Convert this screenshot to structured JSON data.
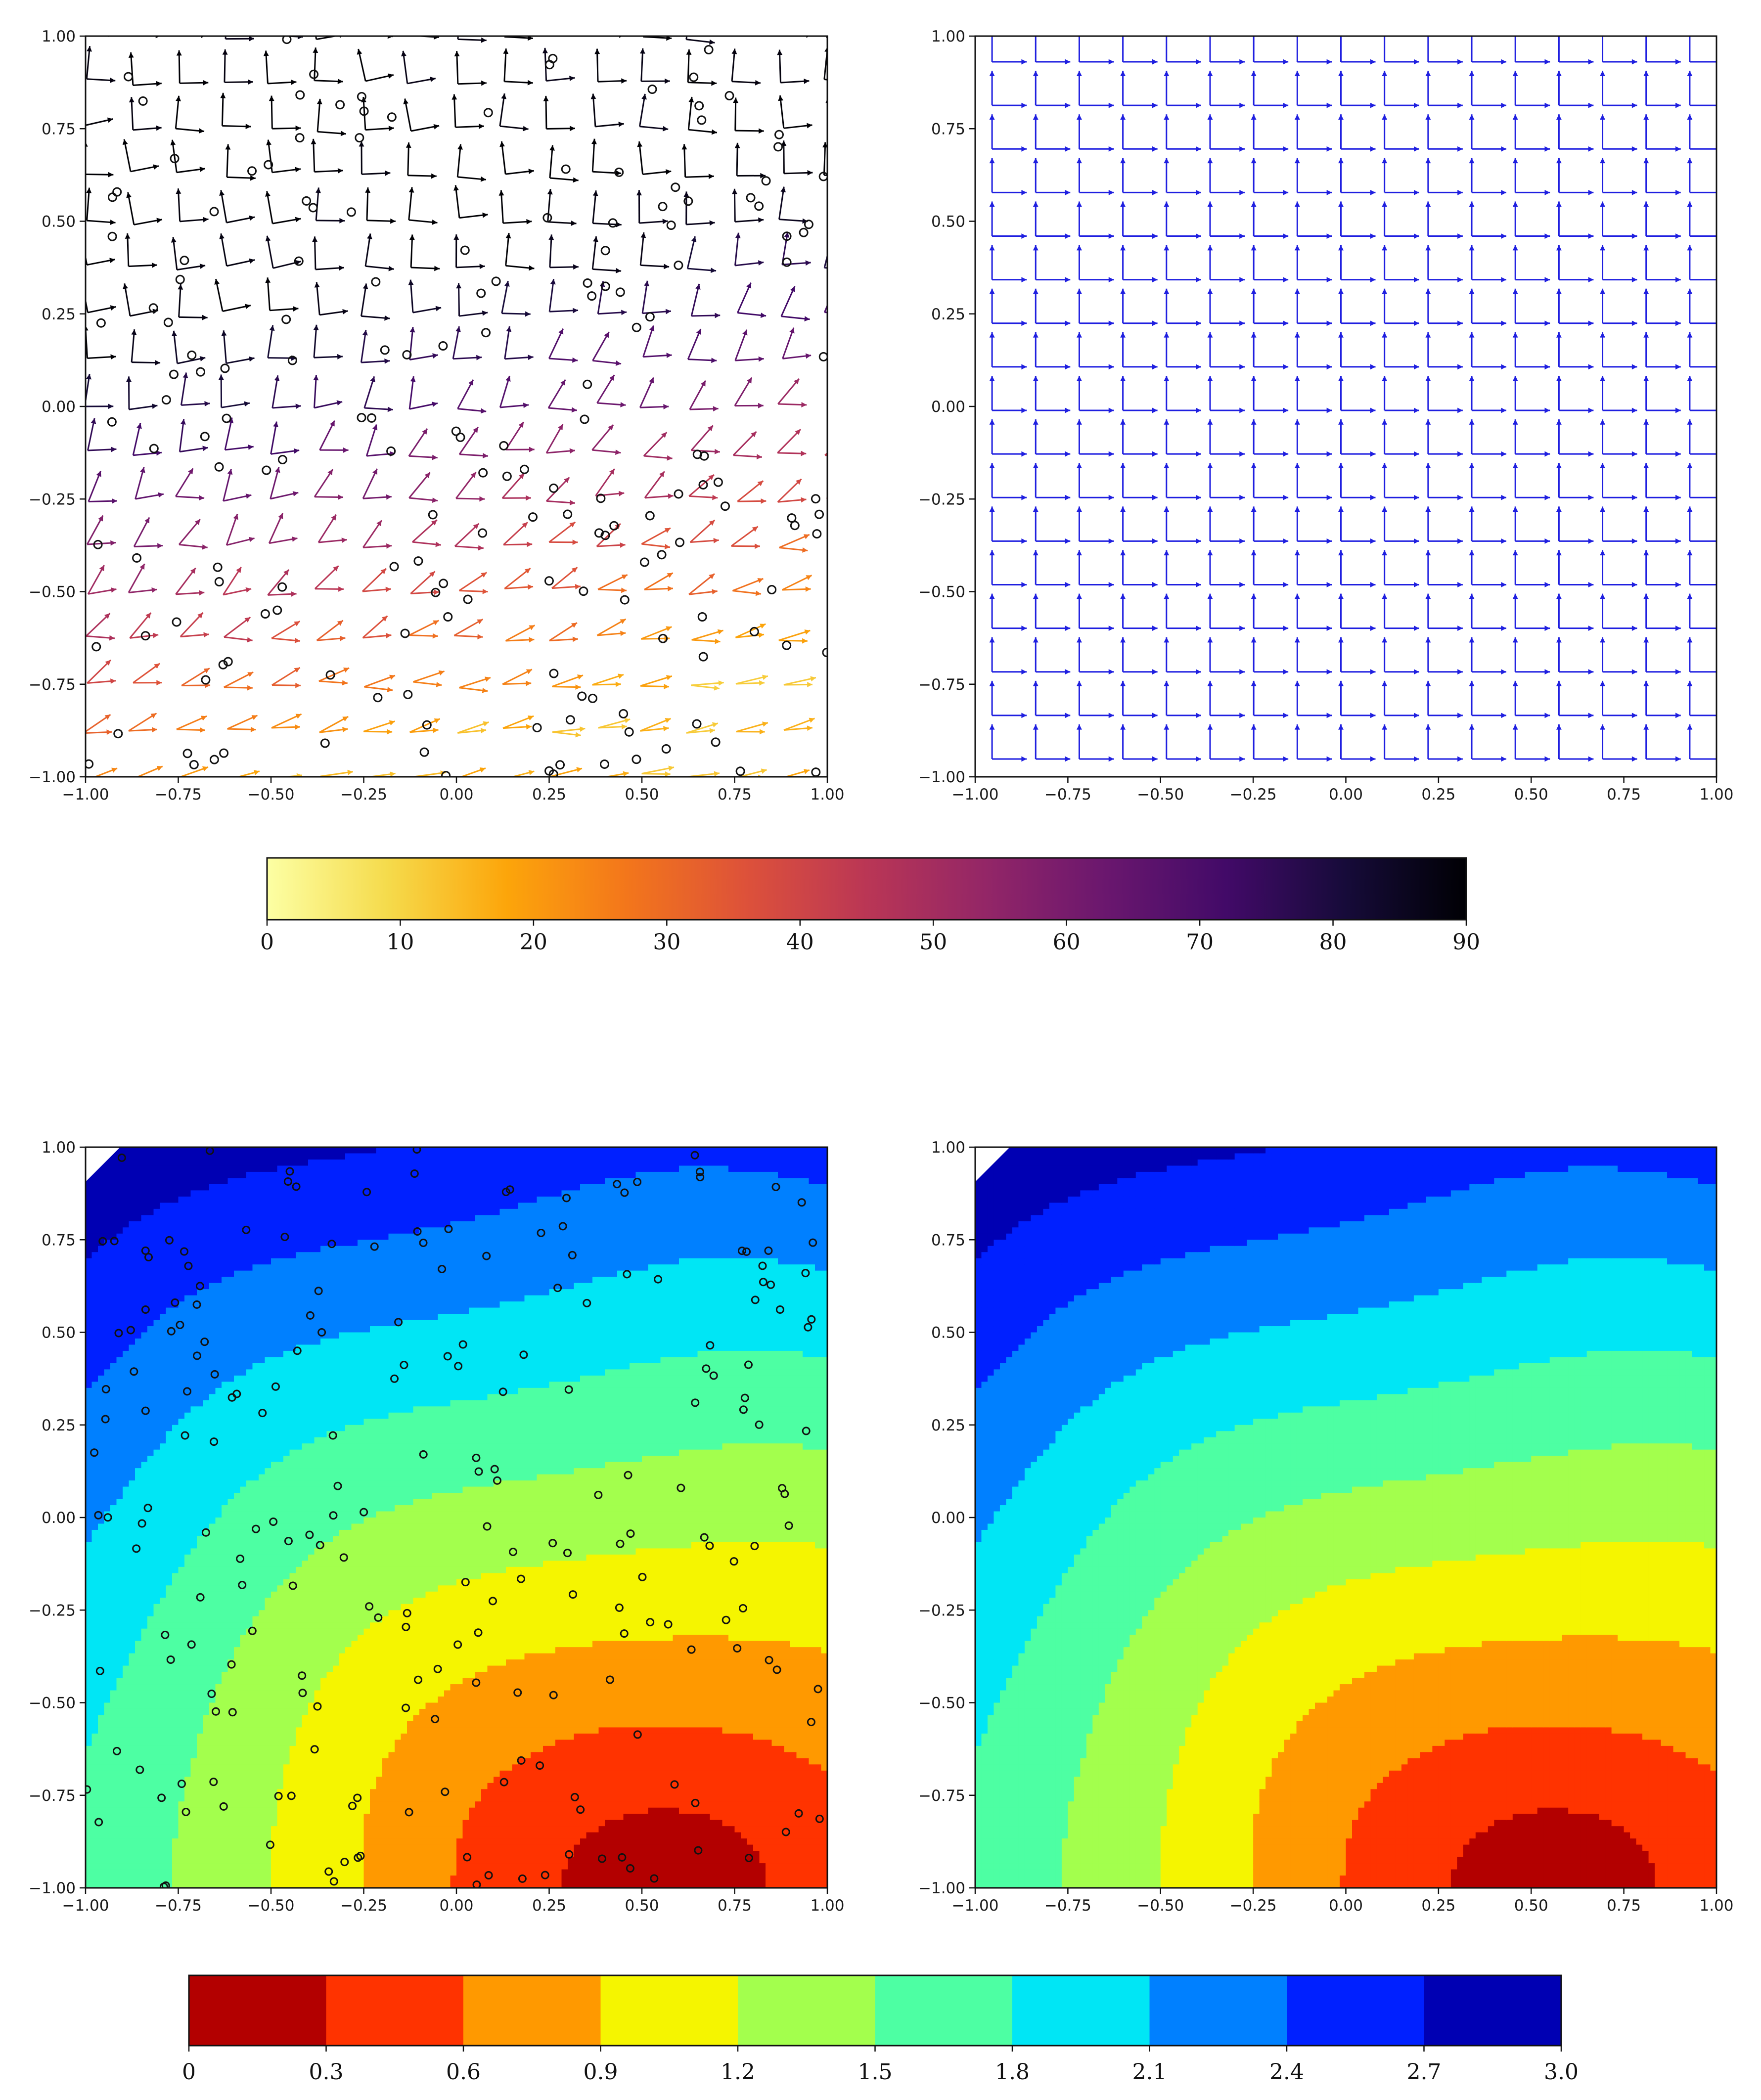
{
  "chart_data": [
    {
      "type": "quiver",
      "panel": "top-left",
      "xlim": [
        -1,
        1
      ],
      "ylim": [
        -1,
        1
      ],
      "xticks": [
        "−1.00",
        "−0.75",
        "−0.50",
        "−0.25",
        "0.00",
        "0.25",
        "0.50",
        "0.75",
        "1.00"
      ],
      "yticks": [
        "−1.00",
        "−0.75",
        "−0.50",
        "−0.25",
        "0.00",
        "0.25",
        "0.50",
        "0.75",
        "1.00"
      ],
      "grid": false,
      "markers": "open circles at scattered sample points",
      "note": "arrow pairs colored by angle (0–90) using inferno colormap; purple/black in upper-left, orange in lower part"
    },
    {
      "type": "quiver",
      "panel": "top-right",
      "xlim": [
        -1,
        1
      ],
      "ylim": [
        -1,
        1
      ],
      "xticks": [
        "−1.00",
        "−0.75",
        "−0.50",
        "−0.25",
        "0.00",
        "0.25",
        "0.50",
        "0.75",
        "1.00"
      ],
      "yticks": [
        "−1.00",
        "−0.75",
        "−0.50",
        "−0.25",
        "0.00",
        "0.25",
        "0.50",
        "0.75",
        "1.00"
      ],
      "color": "#1f1fe0",
      "grid": false,
      "note": "regular grid of orthogonal arrow pairs (right and up), all blue"
    },
    {
      "type": "colorbar",
      "cmap": "inferno_r",
      "vmin": 0,
      "vmax": 90,
      "ticks": [
        "0",
        "10",
        "20",
        "30",
        "40",
        "50",
        "60",
        "70",
        "80",
        "90"
      ]
    },
    {
      "type": "contourf",
      "panel": "bottom-left",
      "xlim": [
        -1,
        1
      ],
      "ylim": [
        -1,
        1
      ],
      "xticks": [
        "−1.00",
        "−0.75",
        "−0.50",
        "−0.25",
        "0.00",
        "0.25",
        "0.50",
        "0.75",
        "1.00"
      ],
      "yticks": [
        "−1.00",
        "−0.75",
        "−0.50",
        "−0.25",
        "0.00",
        "0.25",
        "0.50",
        "0.75",
        "1.00"
      ],
      "levels": [
        0,
        0.3,
        0.6,
        0.9,
        1.2,
        1.5,
        1.8,
        2.1,
        2.4,
        2.7,
        3.0
      ],
      "minimum_center": [
        0.6,
        -1.0
      ],
      "maximum_corner": [
        -1.0,
        1.0
      ],
      "markers": "open circles at scattered sample points"
    },
    {
      "type": "contourf",
      "panel": "bottom-right",
      "xlim": [
        -1,
        1
      ],
      "ylim": [
        -1,
        1
      ],
      "xticks": [
        "−1.00",
        "−0.75",
        "−0.50",
        "−0.25",
        "0.00",
        "0.25",
        "0.50",
        "0.75",
        "1.00"
      ],
      "yticks": [
        "−1.00",
        "−0.75",
        "−0.50",
        "−0.25",
        "0.00",
        "0.25",
        "0.50",
        "0.75",
        "1.00"
      ],
      "levels": [
        0,
        0.3,
        0.6,
        0.9,
        1.2,
        1.5,
        1.8,
        2.1,
        2.4,
        2.7,
        3.0
      ],
      "minimum_center": [
        0.6,
        -1.0
      ],
      "maximum_corner": [
        -1.0,
        1.0
      ]
    },
    {
      "type": "colorbar",
      "cmap": "jet_r (discrete)",
      "ticks": [
        "0",
        "0.3",
        "0.6",
        "0.9",
        "1.2",
        "1.5",
        "1.8",
        "2.1",
        "2.4",
        "2.7",
        "3.0"
      ],
      "colors": [
        "#b30000",
        "#ff3300",
        "#ff9900",
        "#f5f500",
        "#a3ff4d",
        "#4dffa3",
        "#00e6f5",
        "#0080ff",
        "#0020ff",
        "#0000b3"
      ]
    }
  ],
  "axes": {
    "tick_labels": [
      "−1.00",
      "−0.75",
      "−0.50",
      "−0.25",
      "0.00",
      "0.25",
      "0.50",
      "0.75",
      "1.00"
    ]
  },
  "colorbars": {
    "top_labels": [
      "0",
      "10",
      "20",
      "30",
      "40",
      "50",
      "60",
      "70",
      "80",
      "90"
    ],
    "bottom_labels": [
      "0",
      "0.3",
      "0.6",
      "0.9",
      "1.2",
      "1.5",
      "1.8",
      "2.1",
      "2.4",
      "2.7",
      "3.0"
    ]
  }
}
